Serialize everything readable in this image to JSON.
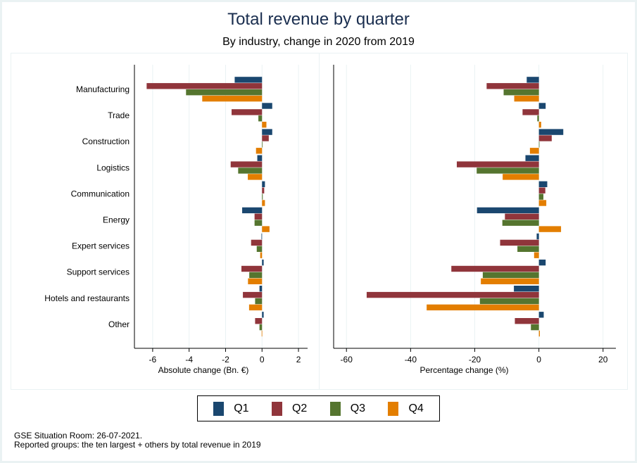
{
  "title": "Total revenue by quarter",
  "subtitle": "By industry, change in 2020 from 2019",
  "chart_data": [
    {
      "type": "bar",
      "orientation": "horizontal",
      "title": "",
      "xlabel": "Absolute change (Bn. €)",
      "ylabel": "",
      "xlim": [
        -7,
        2.5
      ],
      "xticks": [
        -6,
        -4,
        -2,
        0,
        2
      ],
      "xtick_labels": [
        "-6",
        "-4",
        "-2",
        "0",
        "2"
      ],
      "grid": true,
      "categories": [
        "Manufacturing",
        "Trade",
        "Construction",
        "Logistics",
        "Communication",
        "Energy",
        "Expert services",
        "Support services",
        "Hotels and restaurants",
        "Other"
      ],
      "series": [
        {
          "name": "Q1",
          "values": [
            -1.5,
            0.56,
            0.56,
            -0.26,
            0.16,
            -1.09,
            -0.03,
            0.09,
            -0.14,
            0.09
          ]
        },
        {
          "name": "Q2",
          "values": [
            -6.33,
            -1.67,
            0.37,
            -1.72,
            0.12,
            -0.41,
            -0.6,
            -1.13,
            -1.05,
            -0.38
          ]
        },
        {
          "name": "Q3",
          "values": [
            -4.17,
            -0.2,
            0.0,
            -1.31,
            0.04,
            -0.41,
            -0.29,
            -0.7,
            -0.38,
            -0.14
          ]
        },
        {
          "name": "Q4",
          "values": [
            -3.28,
            0.24,
            -0.33,
            -0.78,
            0.16,
            0.41,
            -0.1,
            -0.77,
            -0.71,
            -0.02
          ]
        }
      ]
    },
    {
      "type": "bar",
      "orientation": "horizontal",
      "title": "",
      "xlabel": "Percentage change (%)",
      "ylabel": "",
      "xlim": [
        -64,
        24
      ],
      "xticks": [
        -60,
        -40,
        -20,
        0,
        20
      ],
      "xtick_labels": [
        "-60",
        "-40",
        "-20",
        "0",
        "20"
      ],
      "grid": true,
      "categories": [
        "Manufacturing",
        "Trade",
        "Construction",
        "Logistics",
        "Communication",
        "Energy",
        "Expert services",
        "Support services",
        "Hotels and restaurants",
        "Other"
      ],
      "series": [
        {
          "name": "Q1",
          "values": [
            -3.8,
            2.1,
            7.6,
            -4.2,
            2.6,
            -19.3,
            -0.7,
            2.1,
            -7.8,
            1.5
          ]
        },
        {
          "name": "Q2",
          "values": [
            -16.3,
            -5.1,
            4.0,
            -25.6,
            2.0,
            -10.6,
            -12.1,
            -27.3,
            -53.7,
            -7.5
          ]
        },
        {
          "name": "Q3",
          "values": [
            -11.0,
            -0.5,
            0.0,
            -19.4,
            1.4,
            -11.4,
            -6.7,
            -17.5,
            -18.4,
            -2.5
          ]
        },
        {
          "name": "Q4",
          "values": [
            -7.7,
            0.7,
            -2.8,
            -11.3,
            2.3,
            6.9,
            -1.5,
            -18.1,
            -35.0,
            0.3
          ]
        }
      ]
    }
  ],
  "legend": {
    "placement": "bottom-center",
    "items": [
      {
        "label": "Q1",
        "color": "#1a476f"
      },
      {
        "label": "Q2",
        "color": "#90353b"
      },
      {
        "label": "Q3",
        "color": "#55752f"
      },
      {
        "label": "Q4",
        "color": "#e37e00"
      }
    ]
  },
  "notes": {
    "line1": "GSE Situation Room: 26-07-2021.",
    "line2": "Reported groups: the ten largest + others by total revenue in 2019"
  }
}
